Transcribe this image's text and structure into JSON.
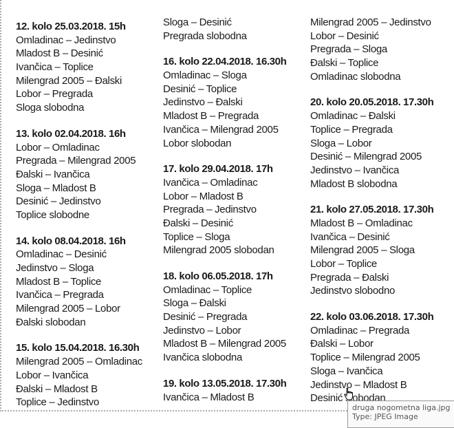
{
  "columns": [
    {
      "blocks": [
        {
          "heading": "12. kolo 25.03.2018. 15h",
          "lines": [
            "Omladinac – Jedinstvo",
            "Mladost B – Desinić",
            "Ivančica – Toplice",
            "Milengrad 2005 – Đalski",
            "Lobor – Pregrada",
            "Sloga slobodna"
          ]
        },
        {
          "heading": "13. kolo 02.04.2018. 16h",
          "lines": [
            "Lobor – Omladinac",
            "Pregrada – Milengrad 2005",
            "Đalski – Ivančica",
            "Sloga – Mladost B",
            "Desinić – Jedinstvo",
            "Toplice slobodne"
          ]
        },
        {
          "heading": "14. kolo 08.04.2018. 16h",
          "lines": [
            "Omladinac – Desinić",
            "Jedinstvo – Sloga",
            "Mladost B – Toplice",
            "Ivančica – Pregrada",
            "Milengrad 2005 – Lobor",
            "Đalski slobodan"
          ]
        },
        {
          "heading": "15. kolo 15.04.2018. 16.30h",
          "lines": [
            "Milengrad 2005 – Omladinac",
            "Lobor – Ivančica",
            "Đalski – Mladost B",
            "Toplice – Jedinstvo"
          ]
        }
      ]
    },
    {
      "blocks": [
        {
          "heading": "",
          "lines": [
            "Sloga – Desinić",
            "Pregrada slobodna"
          ]
        },
        {
          "heading": "16. kolo 22.04.2018. 16.30h",
          "lines": [
            "Omladinac – Sloga",
            "Desinić – Toplice",
            "Jedinstvo – Đalski",
            "Mladost B – Pregrada",
            "Ivančica – Milengrad 2005",
            "Lobor slobodan"
          ]
        },
        {
          "heading": "17. kolo 29.04.2018. 17h",
          "lines": [
            "Ivančica – Omladinac",
            "Lobor – Mladost B",
            "Pregrada – Jedinstvo",
            "Đalski – Desinić",
            "Toplice – Sloga",
            "Milengrad 2005 slobodan"
          ]
        },
        {
          "heading": "18. kolo 06.05.2018. 17h",
          "lines": [
            "Omladinac – Toplice",
            "Sloga – Đalski",
            "Desinić – Pregrada",
            "Jedinstvo –  Lobor",
            "Mladost B – Milengrad 2005",
            "Ivančica slobodna"
          ]
        },
        {
          "heading": "19. kolo 13.05.2018. 17.30h",
          "lines": [
            "Ivančica – Mladost B"
          ]
        }
      ]
    },
    {
      "blocks": [
        {
          "heading": "",
          "lines": [
            "Milengrad 2005 –  Jedinstvo",
            "Lobor – Desinić",
            "Pregrada –  Sloga",
            "Đalski – Toplice",
            "Omladinac slobodna"
          ]
        },
        {
          "heading": "20. kolo 20.05.2018. 17.30h",
          "lines": [
            "Omladinac – Đalski",
            "Toplice – Pregrada",
            "Sloga – Lobor",
            "Desinić – Milengrad 2005",
            "Jedinstvo – Ivančica",
            "Mladost B slobodna"
          ]
        },
        {
          "heading": "21. kolo 27.05.2018. 17.30h",
          "lines": [
            "Mladost B – Omladinac",
            "Ivančica – Desinić",
            "Milengrad 2005 – Sloga",
            "Lobor – Toplice",
            "Pregrada – Đalski",
            "Jedinstvo slobodno"
          ]
        },
        {
          "heading": "22. kolo 03.06.2018. 17.30h",
          "lines": [
            "Omladinac – Pregrada",
            "Đalski – Lobor",
            "Toplice – Milengrad 2005",
            "Sloga – Ivančica",
            "Jedinstvo – Mladost B",
            "Desinić slobodan"
          ]
        }
      ]
    }
  ],
  "tooltip": {
    "filename": "druga nogometna liga.jpg",
    "type": "Type: JPEG Image"
  },
  "icons": {
    "cursor": "hand-pointer-icon"
  }
}
